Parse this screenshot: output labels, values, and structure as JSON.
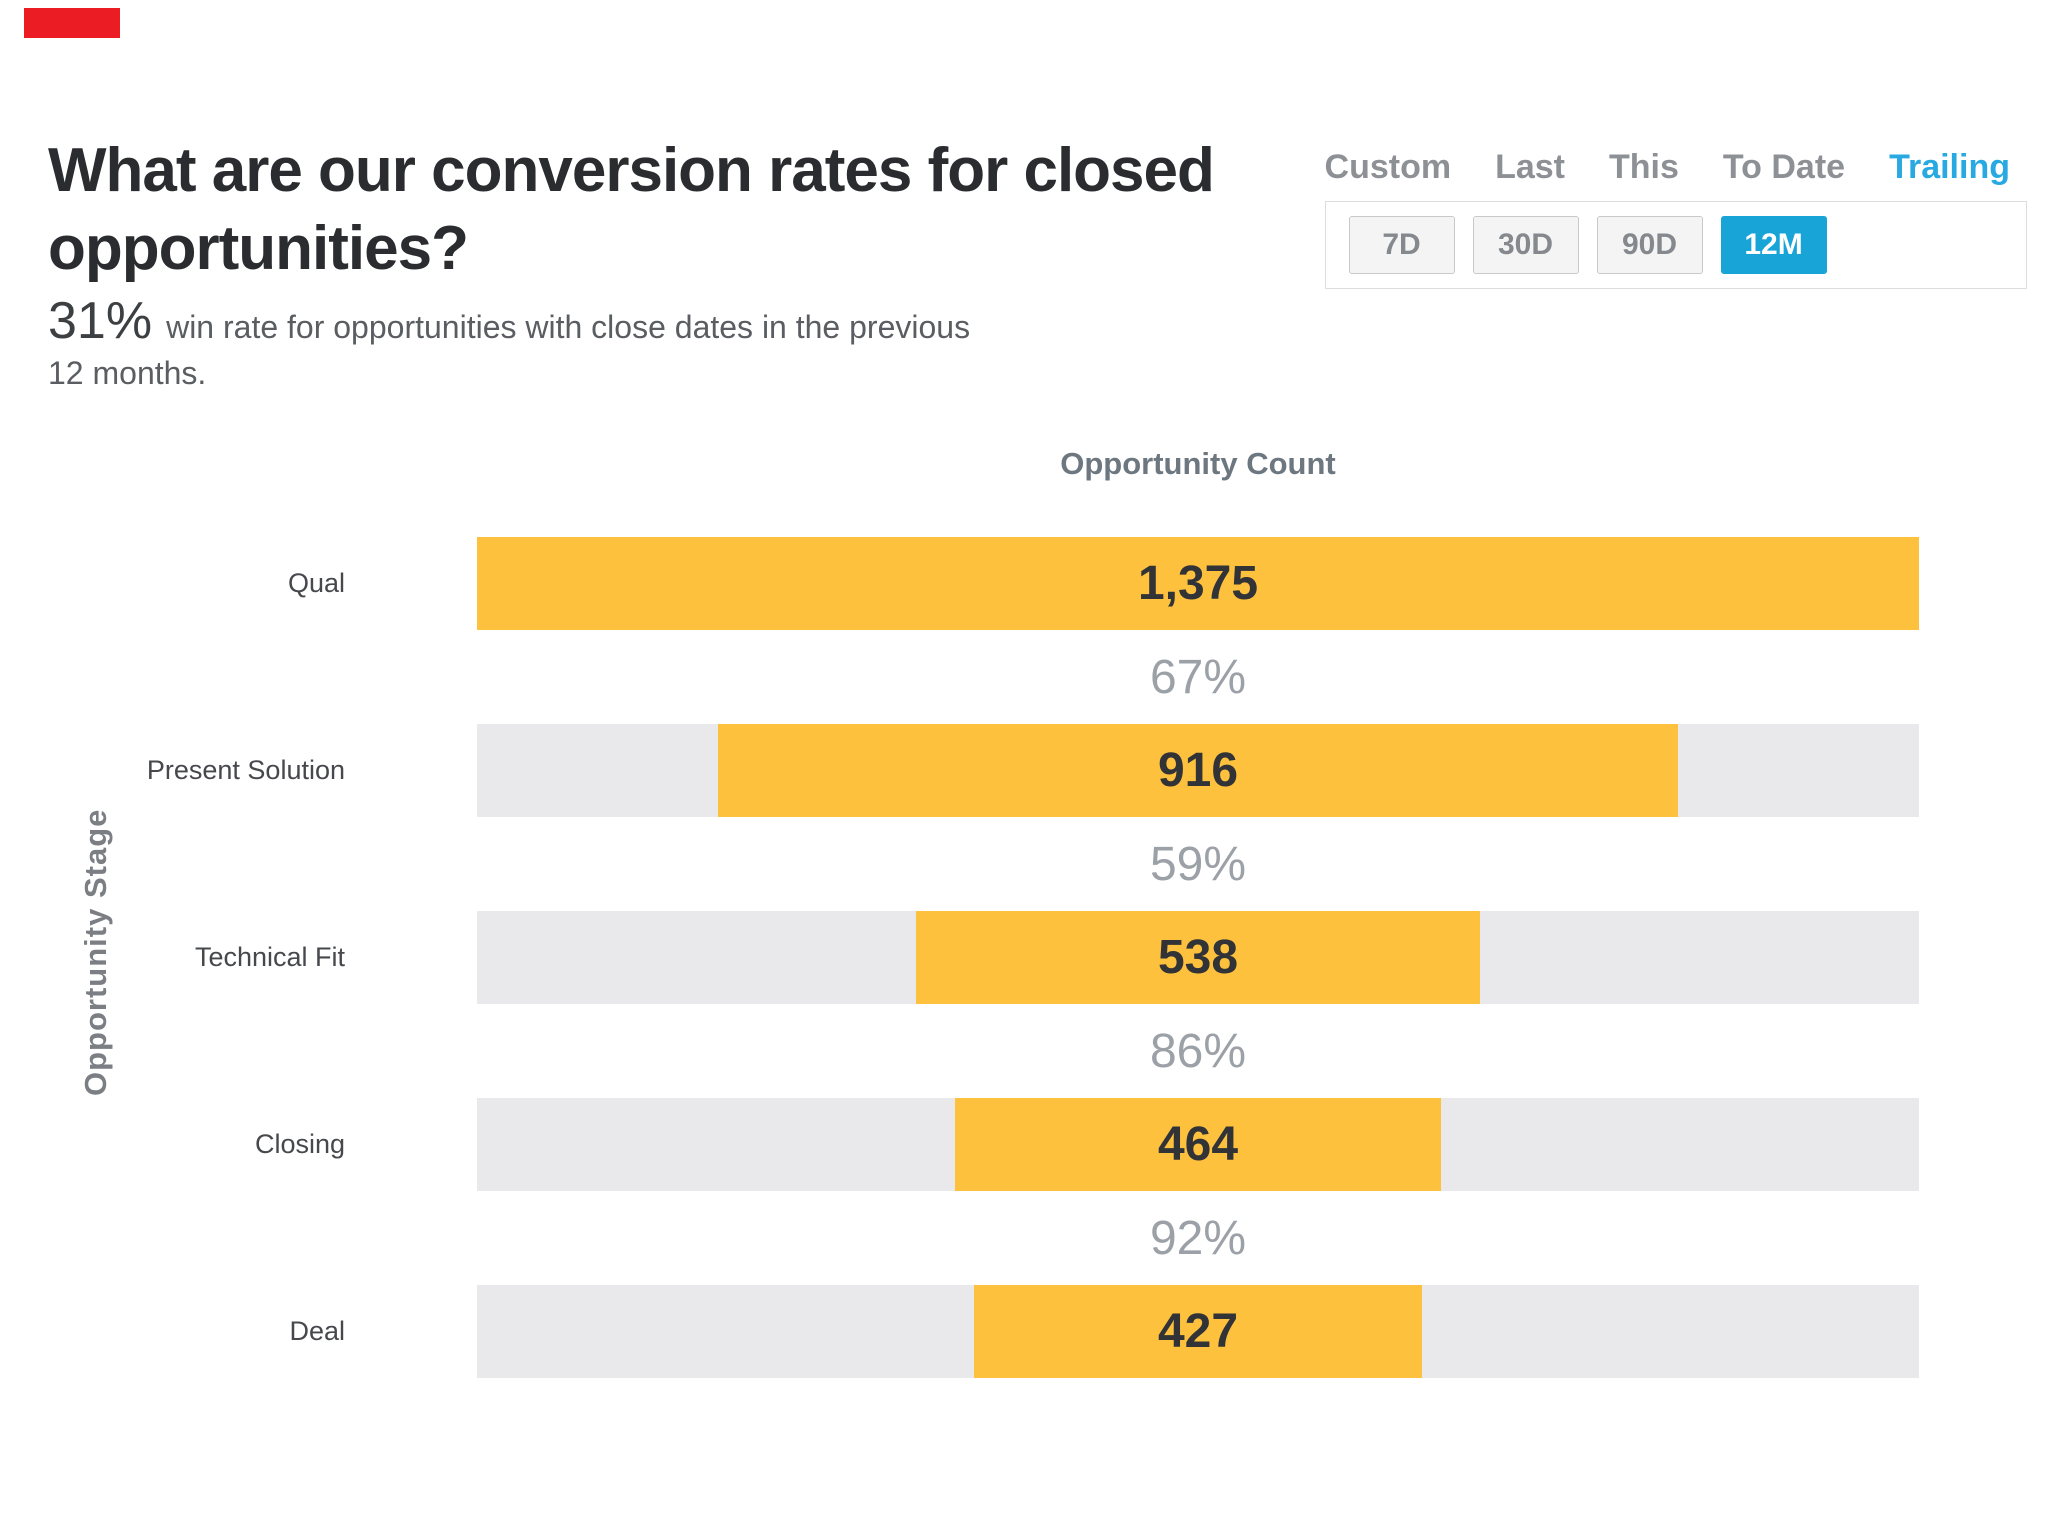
{
  "badge": {
    "color": "#ec1c24"
  },
  "header": {
    "title": "What are our conversion rates for closed opportunities?",
    "stat_value": "31%",
    "stat_text_line1": "win rate for opportunities with close dates in the previous",
    "stat_text_line2": "12 months."
  },
  "time_controls": {
    "tabs": [
      {
        "label": "Custom",
        "active": false
      },
      {
        "label": "Last",
        "active": false
      },
      {
        "label": "This",
        "active": false
      },
      {
        "label": "To Date",
        "active": false
      },
      {
        "label": "Trailing",
        "active": true
      }
    ],
    "ranges": [
      {
        "label": "7D",
        "active": false
      },
      {
        "label": "30D",
        "active": false
      },
      {
        "label": "90D",
        "active": false
      },
      {
        "label": "12M",
        "active": true
      }
    ],
    "active_tab_color": "#29a9e1",
    "active_button_color": "#18a4d6"
  },
  "chart": {
    "title": "Opportunity Count",
    "axis_label": "Opportunity Stage",
    "rows": [
      {
        "label": "Qual",
        "value": "1,375",
        "width_pct": 100
      },
      {
        "label": "Present Solution",
        "value": "916",
        "width_pct": 66.6
      },
      {
        "label": "Technical Fit",
        "value": "538",
        "width_pct": 39.1
      },
      {
        "label": "Closing",
        "value": "464",
        "width_pct": 33.7
      },
      {
        "label": "Deal",
        "value": "427",
        "width_pct": 31.1
      }
    ],
    "conversions": [
      "67%",
      "59%",
      "86%",
      "92%"
    ],
    "bar_color": "#fdc13e",
    "track_color": "#e9e8eb"
  },
  "chart_data": {
    "type": "bar",
    "subtype": "horizontal-funnel",
    "title": "Opportunity Count",
    "ylabel": "Opportunity Stage",
    "categories": [
      "Qual",
      "Present Solution",
      "Technical Fit",
      "Closing",
      "Deal"
    ],
    "values": [
      1375,
      916,
      538,
      464,
      427
    ],
    "value_labels": [
      "1,375",
      "916",
      "538",
      "464",
      "427"
    ],
    "stage_conversion_rates_pct": [
      67,
      59,
      86,
      92
    ],
    "overall_win_rate_pct": 31,
    "period": "Trailing 12M",
    "bars_centered": true,
    "bar_color": "#fdc13e",
    "track_color": "#e9e8eb",
    "xlim": [
      0,
      1375
    ],
    "grid": false,
    "legend": false
  }
}
